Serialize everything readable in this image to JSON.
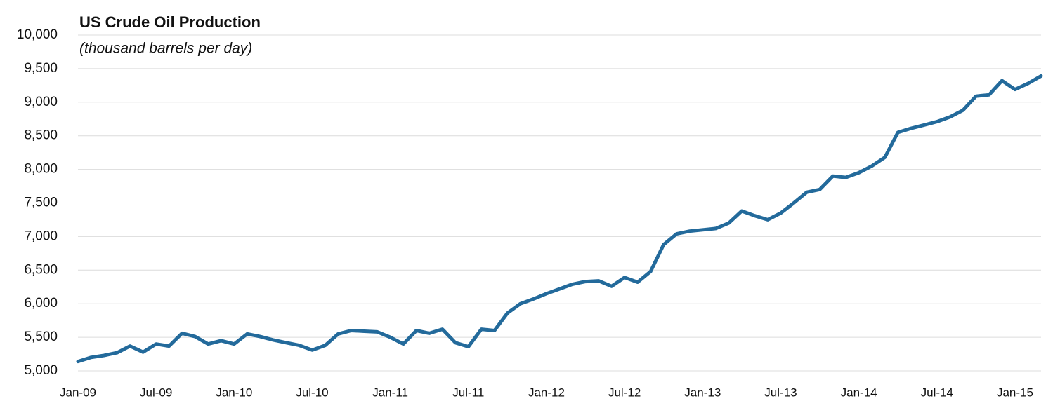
{
  "chart_data": {
    "type": "line",
    "title": "US Crude Oil Production",
    "subtitle": "(thousand barrels per day)",
    "categories": [
      "Jan-09",
      null,
      null,
      null,
      null,
      null,
      "Jul-09",
      null,
      null,
      null,
      null,
      null,
      "Jan-10",
      null,
      null,
      null,
      null,
      null,
      "Jul-10",
      null,
      null,
      null,
      null,
      null,
      "Jan-11",
      null,
      null,
      null,
      null,
      null,
      "Jul-11",
      null,
      null,
      null,
      null,
      null,
      "Jan-12",
      null,
      null,
      null,
      null,
      null,
      "Jul-12",
      null,
      null,
      null,
      null,
      null,
      "Jan-13",
      null,
      null,
      null,
      null,
      null,
      "Jul-13",
      null,
      null,
      null,
      null,
      null,
      "Jan-14",
      null,
      null,
      null,
      null,
      null,
      "Jul-14",
      null,
      null,
      null,
      null,
      null,
      "Jan-15",
      null,
      null
    ],
    "values": [
      5140,
      5200,
      5230,
      5270,
      5370,
      5280,
      5400,
      5370,
      5560,
      5510,
      5400,
      5450,
      5400,
      5550,
      5510,
      5460,
      5420,
      5380,
      5310,
      5380,
      5550,
      5600,
      5590,
      5580,
      5500,
      5400,
      5600,
      5560,
      5620,
      5420,
      5360,
      5620,
      5600,
      5860,
      6000,
      6070,
      6150,
      6220,
      6290,
      6330,
      6340,
      6260,
      6390,
      6320,
      6480,
      6880,
      7040,
      7080,
      7100,
      7120,
      7200,
      7380,
      7310,
      7250,
      7350,
      7500,
      7660,
      7700,
      7900,
      7880,
      7950,
      8050,
      8180,
      8550,
      8610,
      8660,
      8710,
      8780,
      8880,
      9090,
      9110,
      9320,
      9190,
      9280,
      9390
    ],
    "color": "#236a9b",
    "ylim": [
      5000,
      10000
    ],
    "yticks": [
      {
        "value": 5000,
        "label": "5,000"
      },
      {
        "value": 5500,
        "label": "5,500"
      },
      {
        "value": 6000,
        "label": "6,000"
      },
      {
        "value": 6500,
        "label": "6,500"
      },
      {
        "value": 7000,
        "label": "7,000"
      },
      {
        "value": 7500,
        "label": "7,500"
      },
      {
        "value": 8000,
        "label": "8,000"
      },
      {
        "value": 8500,
        "label": "8,500"
      },
      {
        "value": 9000,
        "label": "9,000"
      },
      {
        "value": 9500,
        "label": "9,500"
      },
      {
        "value": 10000,
        "label": "10,000"
      }
    ],
    "grid": true
  }
}
